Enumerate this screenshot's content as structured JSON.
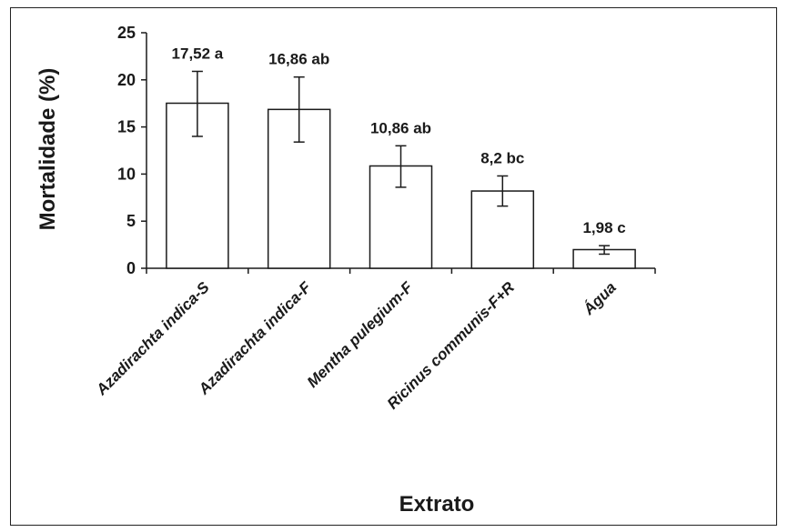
{
  "chart_data": {
    "type": "bar",
    "title": "",
    "xlabel": "Extrato",
    "ylabel": "Mortalidade (%)",
    "ylim": [
      0,
      25
    ],
    "yticks": [
      0,
      5,
      10,
      15,
      20,
      25
    ],
    "grid": false,
    "categories": [
      "Azadirachta indica-S",
      "Azadirachta indica-F",
      "Mentha pulegium-F",
      "Ricinus communis-F+R",
      "Água"
    ],
    "values": [
      17.52,
      16.86,
      10.86,
      8.2,
      1.98
    ],
    "error_low": [
      14.0,
      13.4,
      8.6,
      6.6,
      1.5
    ],
    "error_high": [
      20.9,
      20.3,
      13.0,
      9.8,
      2.4
    ],
    "data_labels": [
      "17,52 a",
      "16,86 ab",
      "10,86 ab",
      "8,2 bc",
      "1,98 c"
    ],
    "bar_color": "#ffffff",
    "bar_edge_color": "#1a1a1a"
  }
}
